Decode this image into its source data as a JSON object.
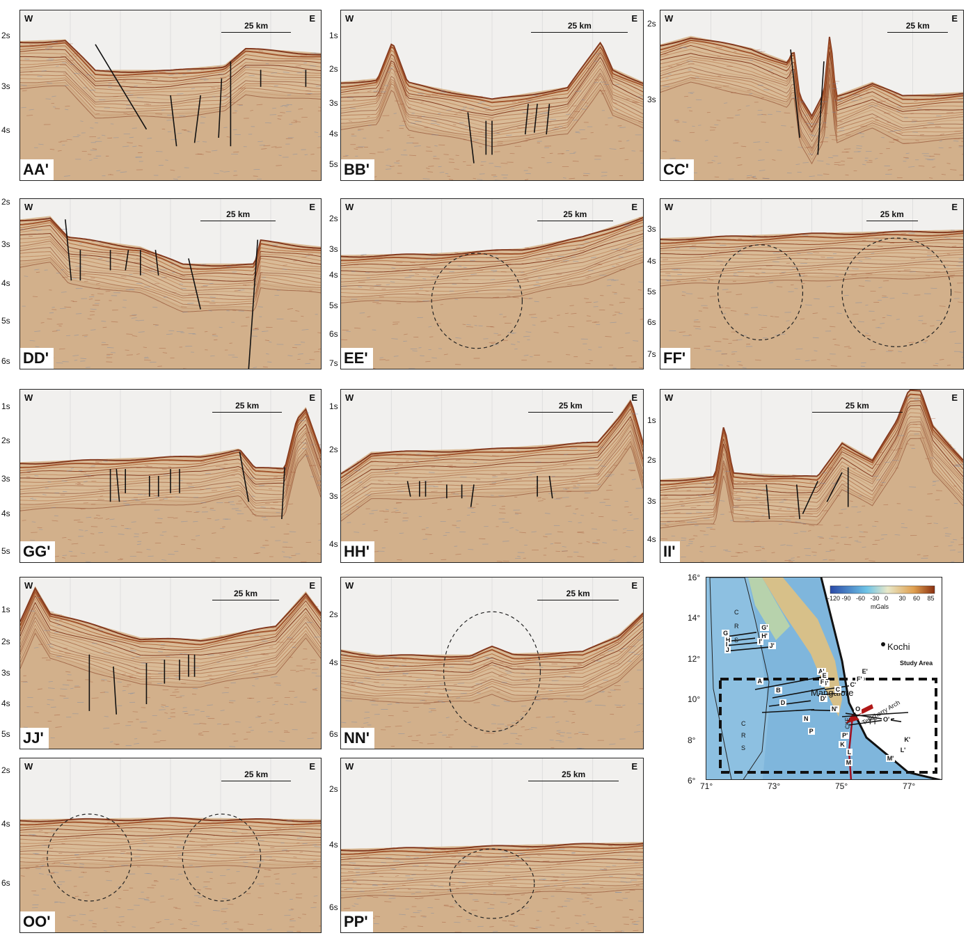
{
  "panels": [
    {
      "id": "AA",
      "name": "AA'",
      "w": "W",
      "e": "E",
      "scale": "25 km",
      "ticks": [
        "2s",
        "3s",
        "4s"
      ]
    },
    {
      "id": "BB",
      "name": "BB'",
      "w": "W",
      "e": "E",
      "scale": "25 km",
      "ticks": [
        "1s",
        "2s",
        "3s",
        "4s",
        "5s"
      ]
    },
    {
      "id": "CC",
      "name": "CC'",
      "w": "W",
      "e": "E",
      "scale": "25 km",
      "ticks": [
        "2s",
        "3s"
      ]
    },
    {
      "id": "DD",
      "name": "DD'",
      "w": "W",
      "e": "E",
      "scale": "25 km",
      "ticks": [
        "2s",
        "3s",
        "4s",
        "5s",
        "6s"
      ]
    },
    {
      "id": "EE",
      "name": "EE'",
      "w": "W",
      "e": "E",
      "scale": "25 km",
      "ticks": [
        "2s",
        "3s",
        "4s",
        "5s",
        "6s",
        "7s"
      ]
    },
    {
      "id": "FF",
      "name": "FF'",
      "w": "W",
      "e": "E",
      "scale": "25 km",
      "ticks": [
        "3s",
        "4s",
        "5s",
        "6s",
        "7s"
      ]
    },
    {
      "id": "GG",
      "name": "GG'",
      "w": "W",
      "e": "E",
      "scale": "25 km",
      "ticks": [
        "1s",
        "2s",
        "3s",
        "4s",
        "5s"
      ]
    },
    {
      "id": "HH",
      "name": "HH'",
      "w": "W",
      "e": "E",
      "scale": "25 km",
      "ticks": [
        "1s",
        "2s",
        "3s",
        "4s"
      ]
    },
    {
      "id": "II",
      "name": "II'",
      "w": "W",
      "e": "E",
      "scale": "25 km",
      "ticks": [
        "1s",
        "2s",
        "3s",
        "4s"
      ]
    },
    {
      "id": "JJ",
      "name": "JJ'",
      "w": "W",
      "e": "E",
      "scale": "25 km",
      "ticks": [
        "1s",
        "2s",
        "3s",
        "4s",
        "5s"
      ]
    },
    {
      "id": "NN",
      "name": "NN'",
      "w": "W",
      "e": "E",
      "scale": "25 km",
      "ticks": [
        "2s",
        "4s",
        "6s"
      ]
    },
    {
      "id": "OO",
      "name": "OO'",
      "w": "W",
      "e": "E",
      "scale": "25 km",
      "ticks": [
        "2s",
        "4s",
        "6s"
      ]
    },
    {
      "id": "PP",
      "name": "PP'",
      "w": "W",
      "e": "E",
      "scale": "25 km",
      "ticks": [
        "2s",
        "4s",
        "6s"
      ]
    }
  ],
  "map": {
    "colorbar_ticks": [
      "-120",
      "-90",
      "-60",
      "-30",
      "0",
      "30",
      "60",
      "85"
    ],
    "colorbar_unit": "mGals",
    "study_area": "Study Area",
    "arch": "Tellicherry Arch",
    "city1": "Mangalore",
    "city2": "Kochi",
    "lat_ticks": [
      "16°",
      "14°",
      "12°",
      "10°",
      "8°",
      "6°"
    ],
    "lon_ticks": [
      "71°",
      "73°",
      "75°",
      "77°"
    ],
    "crs_letters": [
      "C",
      "R",
      "S"
    ],
    "ap": "AP",
    "tt": "TT",
    "cke": "CKE",
    "line_labels": [
      "G",
      "G'",
      "H",
      "H'",
      "I",
      "I'",
      "J",
      "J'",
      "A",
      "A'",
      "B",
      "B'",
      "C",
      "C'",
      "D",
      "D'",
      "E",
      "E'",
      "F",
      "F'",
      "N",
      "N'",
      "O",
      "O'",
      "P",
      "P'",
      "K",
      "K'",
      "L",
      "L'",
      "M",
      "M'"
    ]
  }
}
